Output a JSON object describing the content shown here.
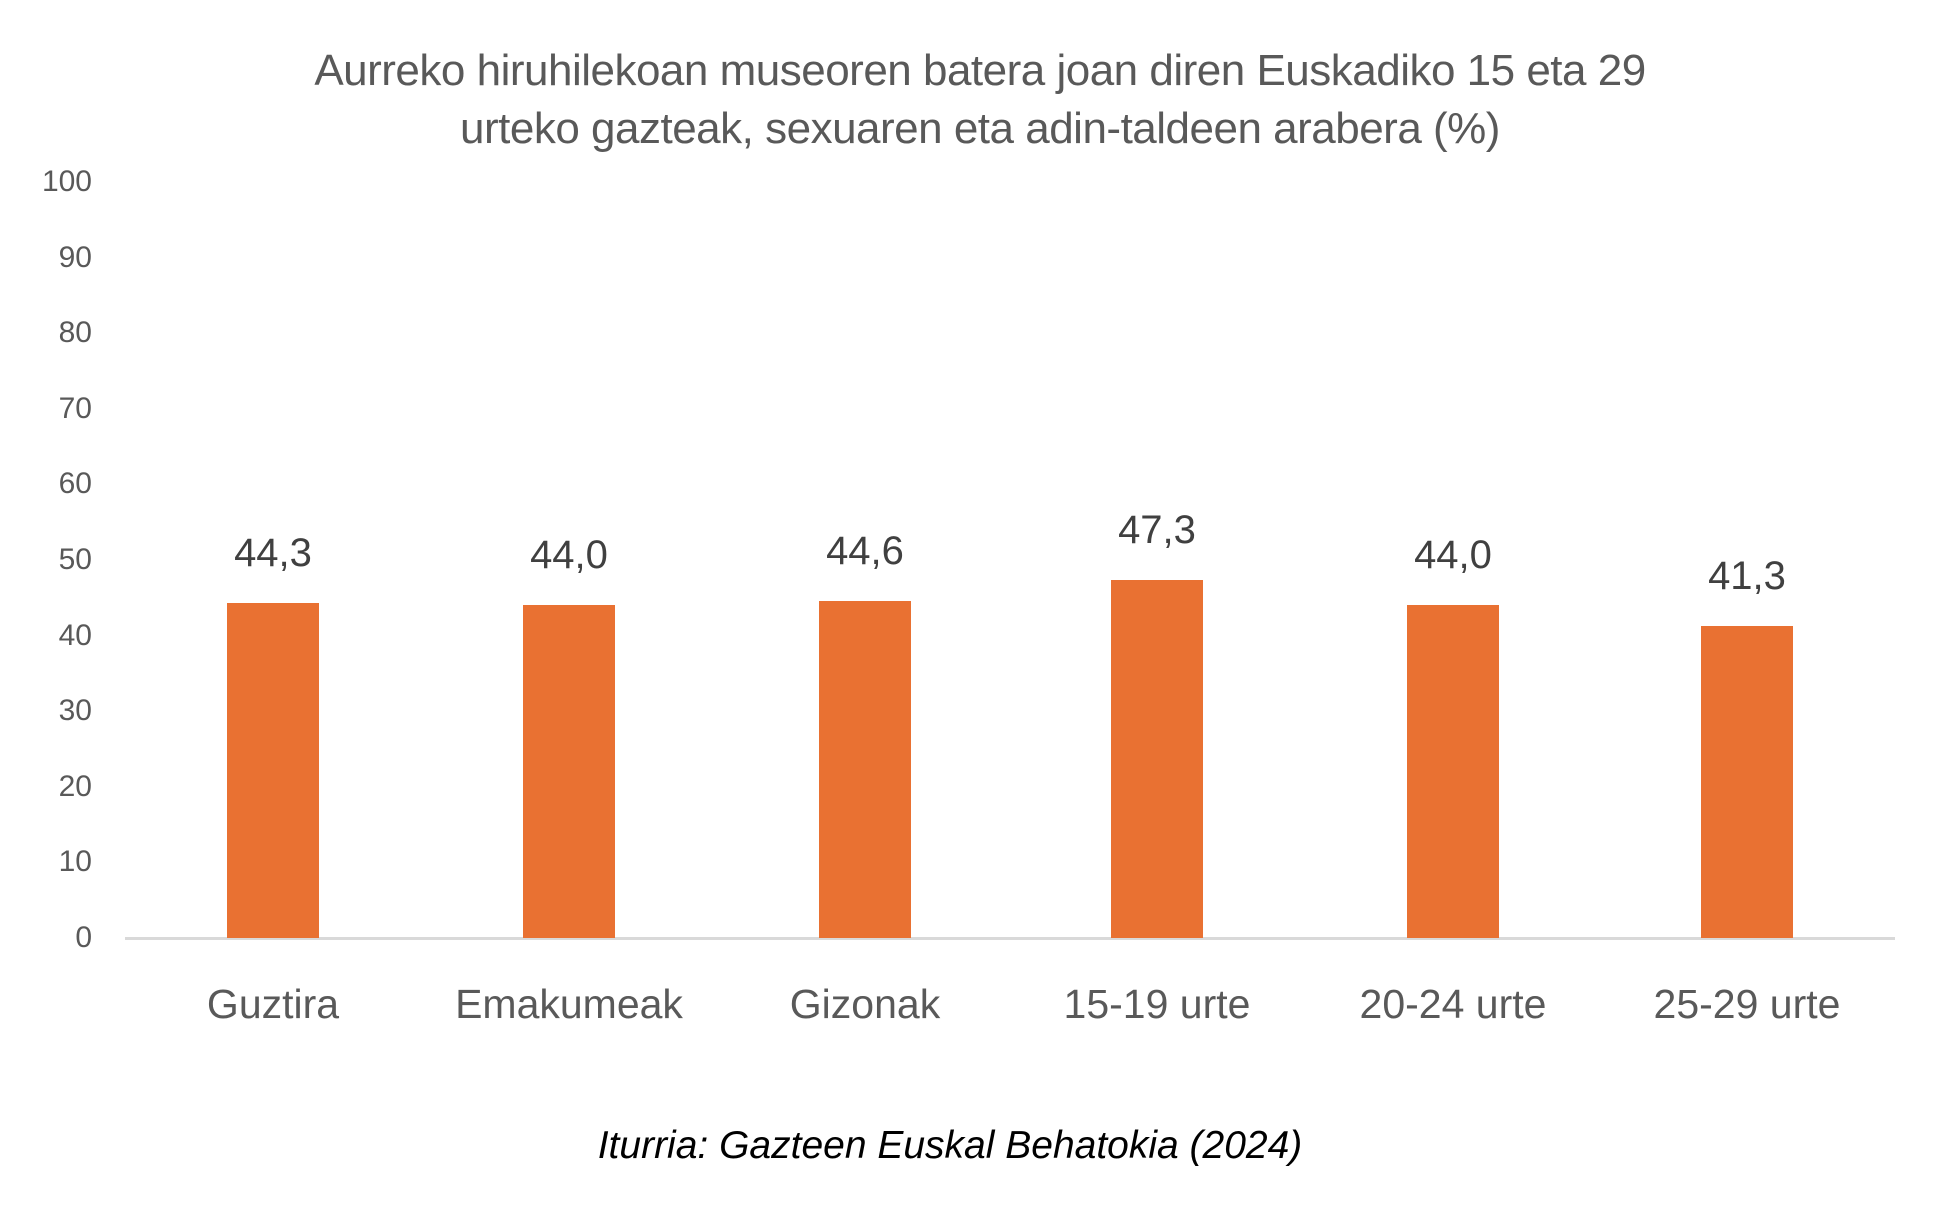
{
  "chart_data": {
    "type": "bar",
    "title": "Aurreko hiruhilekoan museoren batera joan diren Euskadiko 15 eta 29 urteko gazteak, sexuaren eta adin-taldeen arabera  (%)",
    "title_lines": [
      "Aurreko hiruhilekoan museoren batera joan diren Euskadiko 15 eta 29",
      "urteko gazteak, sexuaren eta adin-taldeen arabera  (%)"
    ],
    "categories": [
      "Guztira",
      "Emakumeak",
      "Gizonak",
      "15-19 urte",
      "20-24 urte",
      "25-29 urte"
    ],
    "values": [
      44.3,
      44.0,
      44.6,
      47.3,
      44.0,
      41.3
    ],
    "data_labels": [
      "44,3",
      "44,0",
      "44,6",
      "47,3",
      "44,0",
      "41,3"
    ],
    "xlabel": "",
    "ylabel": "",
    "ylim": [
      0,
      100
    ],
    "yticks": [
      "100",
      "90",
      "80",
      "70",
      "60",
      "50",
      "40",
      "30",
      "20",
      "10",
      "0"
    ],
    "grid": false,
    "legend": null,
    "bar_color": "#E97132",
    "source": "Iturria: Gazteen Euskal Behatokia (2024)"
  }
}
